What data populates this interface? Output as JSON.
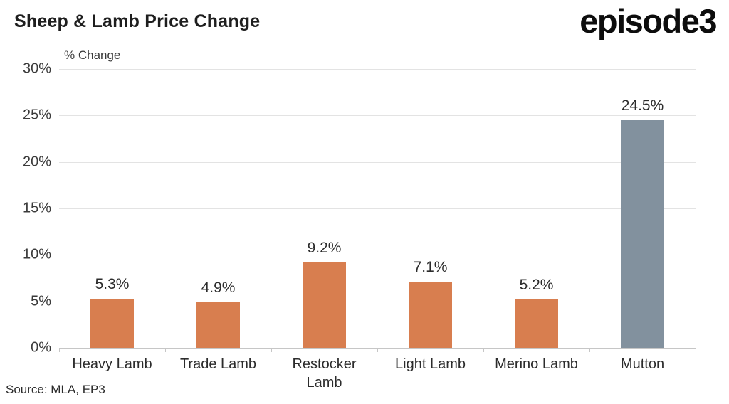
{
  "header": {
    "title": "Sheep & Lamb Price Change",
    "logo_text": "episode3"
  },
  "footer": {
    "source": "Source: MLA, EP3"
  },
  "chart_data": {
    "type": "bar",
    "title": "Sheep & Lamb Price Change",
    "ylabel": "% Change",
    "xlabel": "",
    "categories": [
      "Heavy Lamb",
      "Trade Lamb",
      "Restocker Lamb",
      "Light Lamb",
      "Merino Lamb",
      "Mutton"
    ],
    "values": [
      5.3,
      4.9,
      9.2,
      7.1,
      5.2,
      24.5
    ],
    "data_labels": [
      "5.3%",
      "4.9%",
      "9.2%",
      "7.1%",
      "5.2%",
      "24.5%"
    ],
    "ylim": [
      0,
      30
    ],
    "ytick_step": 5,
    "ytick_labels": [
      "0%",
      "5%",
      "10%",
      "15%",
      "20%",
      "25%",
      "30%"
    ],
    "grid": true,
    "legend_position": "none",
    "colors": {
      "bar_default": "#D87E4F",
      "bar_highlight": "#82919E",
      "highlight_index": 5,
      "gridline": "#E3E3E3",
      "axis_line": "#C6C6C6",
      "label_text": "#2C2C2C"
    }
  }
}
